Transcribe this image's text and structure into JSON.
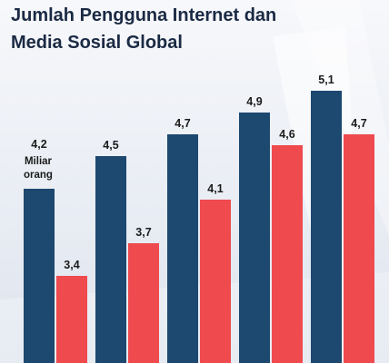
{
  "header": {
    "title_line1": "Jumlah Pengguna Internet dan",
    "title_line2": "Media Sosial Global"
  },
  "colors": {
    "series_1": "#1d4870",
    "series_2": "#ef4a4e",
    "label_text": "#1b1b1b",
    "background": "#eef1f6"
  },
  "annotation": {
    "line1": "Miliar",
    "line2": "orang"
  },
  "chart_data": {
    "type": "bar",
    "title": "Jumlah Pengguna Internet dan Media Sosial Global",
    "unit": "Miliar orang",
    "categories": [
      "",
      "",
      "",
      "",
      ""
    ],
    "series": [
      {
        "values": [
          4.2,
          4.5,
          4.7,
          4.9,
          5.1
        ],
        "labels": [
          "4,2",
          "4,5",
          "4,7",
          "4,9",
          "5,1"
        ],
        "color": "#1d4870"
      },
      {
        "values": [
          3.4,
          3.7,
          4.1,
          4.6,
          4.7
        ],
        "labels": [
          "3,4",
          "3,7",
          "4,1",
          "4,6",
          "4,7"
        ],
        "color": "#ef4a4e"
      }
    ],
    "ylim": [
      2.6,
      5.25
    ],
    "grid": false,
    "legend": "none"
  }
}
